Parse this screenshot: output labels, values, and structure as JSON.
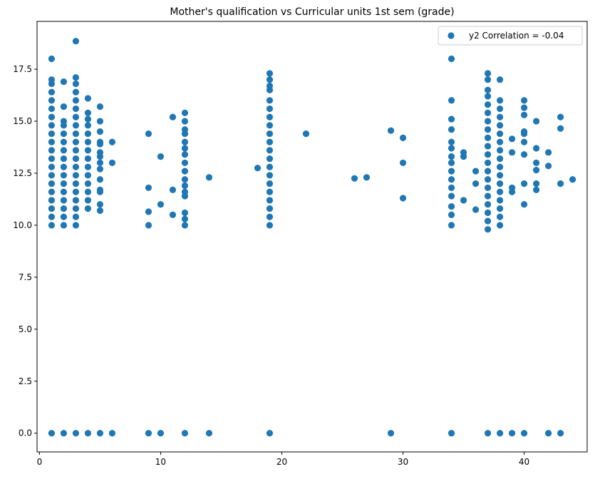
{
  "chart_data": {
    "type": "scatter",
    "title": "Mother's qualification vs Curricular units 1st sem (grade)",
    "xlabel": "",
    "ylabel": "",
    "xlim": [
      -0.2,
      45.2
    ],
    "ylim": [
      -0.9,
      19.8
    ],
    "xticks": [
      0,
      10,
      20,
      30,
      40
    ],
    "yticks": [
      0.0,
      2.5,
      5.0,
      7.5,
      10.0,
      12.5,
      15.0,
      17.5
    ],
    "grid": false,
    "legend": {
      "position": "top-right",
      "entries": [
        "y2 Correlation = -0.04"
      ]
    },
    "series": [
      {
        "name": "y2 Correlation = -0.04",
        "color": "#1f77b4",
        "points": [
          {
            "x": 1,
            "y": 0
          },
          {
            "x": 2,
            "y": 0
          },
          {
            "x": 3,
            "y": 0
          },
          {
            "x": 4,
            "y": 0
          },
          {
            "x": 5,
            "y": 0
          },
          {
            "x": 6,
            "y": 0
          },
          {
            "x": 9,
            "y": 0
          },
          {
            "x": 10,
            "y": 0
          },
          {
            "x": 12,
            "y": 0
          },
          {
            "x": 14,
            "y": 0
          },
          {
            "x": 19,
            "y": 0
          },
          {
            "x": 29,
            "y": 0
          },
          {
            "x": 34,
            "y": 0
          },
          {
            "x": 37,
            "y": 0
          },
          {
            "x": 38,
            "y": 0
          },
          {
            "x": 39,
            "y": 0
          },
          {
            "x": 40,
            "y": 0
          },
          {
            "x": 42,
            "y": 0
          },
          {
            "x": 43,
            "y": 0
          },
          {
            "x": 1,
            "y": 10.0
          },
          {
            "x": 1,
            "y": 10.4
          },
          {
            "x": 1,
            "y": 10.8
          },
          {
            "x": 1,
            "y": 11.2
          },
          {
            "x": 1,
            "y": 11.6
          },
          {
            "x": 1,
            "y": 12.0
          },
          {
            "x": 1,
            "y": 12.4
          },
          {
            "x": 1,
            "y": 12.8
          },
          {
            "x": 1,
            "y": 13.2
          },
          {
            "x": 1,
            "y": 13.6
          },
          {
            "x": 1,
            "y": 14.0
          },
          {
            "x": 1,
            "y": 14.4
          },
          {
            "x": 1,
            "y": 14.8
          },
          {
            "x": 1,
            "y": 15.2
          },
          {
            "x": 1,
            "y": 15.6
          },
          {
            "x": 1,
            "y": 16.0
          },
          {
            "x": 1,
            "y": 16.4
          },
          {
            "x": 1,
            "y": 16.8
          },
          {
            "x": 1,
            "y": 17.0
          },
          {
            "x": 1,
            "y": 18.0
          },
          {
            "x": 2,
            "y": 10.0
          },
          {
            "x": 2,
            "y": 10.4
          },
          {
            "x": 2,
            "y": 10.8
          },
          {
            "x": 2,
            "y": 11.2
          },
          {
            "x": 2,
            "y": 11.6
          },
          {
            "x": 2,
            "y": 12.0
          },
          {
            "x": 2,
            "y": 12.4
          },
          {
            "x": 2,
            "y": 12.8
          },
          {
            "x": 2,
            "y": 13.2
          },
          {
            "x": 2,
            "y": 13.6
          },
          {
            "x": 2,
            "y": 14.0
          },
          {
            "x": 2,
            "y": 14.4
          },
          {
            "x": 2,
            "y": 14.8
          },
          {
            "x": 2,
            "y": 15.0
          },
          {
            "x": 2,
            "y": 15.7
          },
          {
            "x": 2,
            "y": 16.9
          },
          {
            "x": 3,
            "y": 10.0
          },
          {
            "x": 3,
            "y": 10.4
          },
          {
            "x": 3,
            "y": 10.8
          },
          {
            "x": 3,
            "y": 11.2
          },
          {
            "x": 3,
            "y": 11.6
          },
          {
            "x": 3,
            "y": 12.0
          },
          {
            "x": 3,
            "y": 12.4
          },
          {
            "x": 3,
            "y": 12.8
          },
          {
            "x": 3,
            "y": 13.2
          },
          {
            "x": 3,
            "y": 13.6
          },
          {
            "x": 3,
            "y": 14.0
          },
          {
            "x": 3,
            "y": 14.4
          },
          {
            "x": 3,
            "y": 14.8
          },
          {
            "x": 3,
            "y": 15.2
          },
          {
            "x": 3,
            "y": 15.6
          },
          {
            "x": 3,
            "y": 16.0
          },
          {
            "x": 3,
            "y": 16.4
          },
          {
            "x": 3,
            "y": 16.8
          },
          {
            "x": 3,
            "y": 17.1
          },
          {
            "x": 3,
            "y": 18.85
          },
          {
            "x": 4,
            "y": 10.8
          },
          {
            "x": 4,
            "y": 11.2
          },
          {
            "x": 4,
            "y": 11.6
          },
          {
            "x": 4,
            "y": 12.0
          },
          {
            "x": 4,
            "y": 12.4
          },
          {
            "x": 4,
            "y": 12.8
          },
          {
            "x": 4,
            "y": 13.2
          },
          {
            "x": 4,
            "y": 13.6
          },
          {
            "x": 4,
            "y": 14.0
          },
          {
            "x": 4,
            "y": 14.4
          },
          {
            "x": 4,
            "y": 14.8
          },
          {
            "x": 4,
            "y": 15.1
          },
          {
            "x": 4,
            "y": 15.4
          },
          {
            "x": 4,
            "y": 16.1
          },
          {
            "x": 5,
            "y": 10.7
          },
          {
            "x": 5,
            "y": 11.0
          },
          {
            "x": 5,
            "y": 11.6
          },
          {
            "x": 5,
            "y": 11.7
          },
          {
            "x": 5,
            "y": 12.2
          },
          {
            "x": 5,
            "y": 12.7
          },
          {
            "x": 5,
            "y": 13.0
          },
          {
            "x": 5,
            "y": 13.3
          },
          {
            "x": 5,
            "y": 13.5
          },
          {
            "x": 5,
            "y": 13.9
          },
          {
            "x": 5,
            "y": 14.0
          },
          {
            "x": 5,
            "y": 14.5
          },
          {
            "x": 5,
            "y": 15.0
          },
          {
            "x": 5,
            "y": 15.7
          },
          {
            "x": 6,
            "y": 13.0
          },
          {
            "x": 6,
            "y": 14.0
          },
          {
            "x": 9,
            "y": 10.0
          },
          {
            "x": 9,
            "y": 10.65
          },
          {
            "x": 9,
            "y": 11.8
          },
          {
            "x": 9,
            "y": 14.4
          },
          {
            "x": 10,
            "y": 11.0
          },
          {
            "x": 10,
            "y": 13.3
          },
          {
            "x": 11,
            "y": 10.5
          },
          {
            "x": 11,
            "y": 11.7
          },
          {
            "x": 11,
            "y": 15.2
          },
          {
            "x": 12,
            "y": 10.0
          },
          {
            "x": 12,
            "y": 10.3
          },
          {
            "x": 12,
            "y": 10.6
          },
          {
            "x": 12,
            "y": 11.4
          },
          {
            "x": 12,
            "y": 11.6
          },
          {
            "x": 12,
            "y": 11.9
          },
          {
            "x": 12,
            "y": 12.2
          },
          {
            "x": 12,
            "y": 12.6
          },
          {
            "x": 12,
            "y": 13.0
          },
          {
            "x": 12,
            "y": 13.4
          },
          {
            "x": 12,
            "y": 13.7
          },
          {
            "x": 12,
            "y": 14.0
          },
          {
            "x": 12,
            "y": 14.4
          },
          {
            "x": 12,
            "y": 14.6
          },
          {
            "x": 12,
            "y": 15.0
          },
          {
            "x": 12,
            "y": 15.4
          },
          {
            "x": 14,
            "y": 12.3
          },
          {
            "x": 18,
            "y": 12.75
          },
          {
            "x": 19,
            "y": 10.0
          },
          {
            "x": 19,
            "y": 10.4
          },
          {
            "x": 19,
            "y": 10.8
          },
          {
            "x": 19,
            "y": 11.2
          },
          {
            "x": 19,
            "y": 11.6
          },
          {
            "x": 19,
            "y": 12.0
          },
          {
            "x": 19,
            "y": 12.4
          },
          {
            "x": 19,
            "y": 12.8
          },
          {
            "x": 19,
            "y": 13.2
          },
          {
            "x": 19,
            "y": 13.6
          },
          {
            "x": 19,
            "y": 14.0
          },
          {
            "x": 19,
            "y": 14.4
          },
          {
            "x": 19,
            "y": 14.8
          },
          {
            "x": 19,
            "y": 15.2
          },
          {
            "x": 19,
            "y": 15.6
          },
          {
            "x": 19,
            "y": 16.0
          },
          {
            "x": 19,
            "y": 16.5
          },
          {
            "x": 19,
            "y": 16.7
          },
          {
            "x": 19,
            "y": 17.0
          },
          {
            "x": 19,
            "y": 17.3
          },
          {
            "x": 22,
            "y": 14.4
          },
          {
            "x": 26,
            "y": 12.25
          },
          {
            "x": 27,
            "y": 12.3
          },
          {
            "x": 29,
            "y": 14.55
          },
          {
            "x": 30,
            "y": 11.3
          },
          {
            "x": 30,
            "y": 13.0
          },
          {
            "x": 30,
            "y": 14.2
          },
          {
            "x": 34,
            "y": 10.0
          },
          {
            "x": 34,
            "y": 10.5
          },
          {
            "x": 34,
            "y": 10.9
          },
          {
            "x": 34,
            "y": 11.4
          },
          {
            "x": 34,
            "y": 11.8
          },
          {
            "x": 34,
            "y": 12.2
          },
          {
            "x": 34,
            "y": 12.6
          },
          {
            "x": 34,
            "y": 13.0
          },
          {
            "x": 34,
            "y": 13.3
          },
          {
            "x": 34,
            "y": 13.7
          },
          {
            "x": 34,
            "y": 14.0
          },
          {
            "x": 34,
            "y": 14.6
          },
          {
            "x": 34,
            "y": 15.1
          },
          {
            "x": 34,
            "y": 16.0
          },
          {
            "x": 34,
            "y": 18.0
          },
          {
            "x": 35,
            "y": 11.2
          },
          {
            "x": 35,
            "y": 13.3
          },
          {
            "x": 35,
            "y": 13.5
          },
          {
            "x": 36,
            "y": 10.75
          },
          {
            "x": 36,
            "y": 12.0
          },
          {
            "x": 36,
            "y": 12.6
          },
          {
            "x": 37,
            "y": 9.8
          },
          {
            "x": 37,
            "y": 10.2
          },
          {
            "x": 37,
            "y": 10.6
          },
          {
            "x": 37,
            "y": 11.0
          },
          {
            "x": 37,
            "y": 11.4
          },
          {
            "x": 37,
            "y": 11.8
          },
          {
            "x": 37,
            "y": 12.2
          },
          {
            "x": 37,
            "y": 12.6
          },
          {
            "x": 37,
            "y": 13.0
          },
          {
            "x": 37,
            "y": 13.4
          },
          {
            "x": 37,
            "y": 13.8
          },
          {
            "x": 37,
            "y": 14.2
          },
          {
            "x": 37,
            "y": 14.6
          },
          {
            "x": 37,
            "y": 15.0
          },
          {
            "x": 37,
            "y": 15.4
          },
          {
            "x": 37,
            "y": 15.8
          },
          {
            "x": 37,
            "y": 16.2
          },
          {
            "x": 37,
            "y": 16.5
          },
          {
            "x": 37,
            "y": 17.0
          },
          {
            "x": 37,
            "y": 17.3
          },
          {
            "x": 38,
            "y": 10.0
          },
          {
            "x": 38,
            "y": 10.4
          },
          {
            "x": 38,
            "y": 10.8
          },
          {
            "x": 38,
            "y": 11.2
          },
          {
            "x": 38,
            "y": 11.6
          },
          {
            "x": 38,
            "y": 12.0
          },
          {
            "x": 38,
            "y": 12.4
          },
          {
            "x": 38,
            "y": 12.8
          },
          {
            "x": 38,
            "y": 13.2
          },
          {
            "x": 38,
            "y": 13.6
          },
          {
            "x": 38,
            "y": 14.0
          },
          {
            "x": 38,
            "y": 14.4
          },
          {
            "x": 38,
            "y": 14.8
          },
          {
            "x": 38,
            "y": 15.2
          },
          {
            "x": 38,
            "y": 15.6
          },
          {
            "x": 38,
            "y": 16.0
          },
          {
            "x": 38,
            "y": 17.0
          },
          {
            "x": 39,
            "y": 11.6
          },
          {
            "x": 39,
            "y": 11.8
          },
          {
            "x": 39,
            "y": 13.5
          },
          {
            "x": 39,
            "y": 14.15
          },
          {
            "x": 40,
            "y": 11.0
          },
          {
            "x": 40,
            "y": 12.0
          },
          {
            "x": 40,
            "y": 13.4
          },
          {
            "x": 40,
            "y": 14.0
          },
          {
            "x": 40,
            "y": 14.4
          },
          {
            "x": 40,
            "y": 14.5
          },
          {
            "x": 40,
            "y": 15.3
          },
          {
            "x": 40,
            "y": 15.65
          },
          {
            "x": 40,
            "y": 16.0
          },
          {
            "x": 41,
            "y": 11.7
          },
          {
            "x": 41,
            "y": 12.0
          },
          {
            "x": 41,
            "y": 12.65
          },
          {
            "x": 41,
            "y": 13.0
          },
          {
            "x": 41,
            "y": 13.7
          },
          {
            "x": 41,
            "y": 15.0
          },
          {
            "x": 42,
            "y": 12.85
          },
          {
            "x": 42,
            "y": 13.5
          },
          {
            "x": 43,
            "y": 12.0
          },
          {
            "x": 43,
            "y": 14.65
          },
          {
            "x": 43,
            "y": 15.2
          },
          {
            "x": 44,
            "y": 12.2
          }
        ]
      }
    ]
  }
}
